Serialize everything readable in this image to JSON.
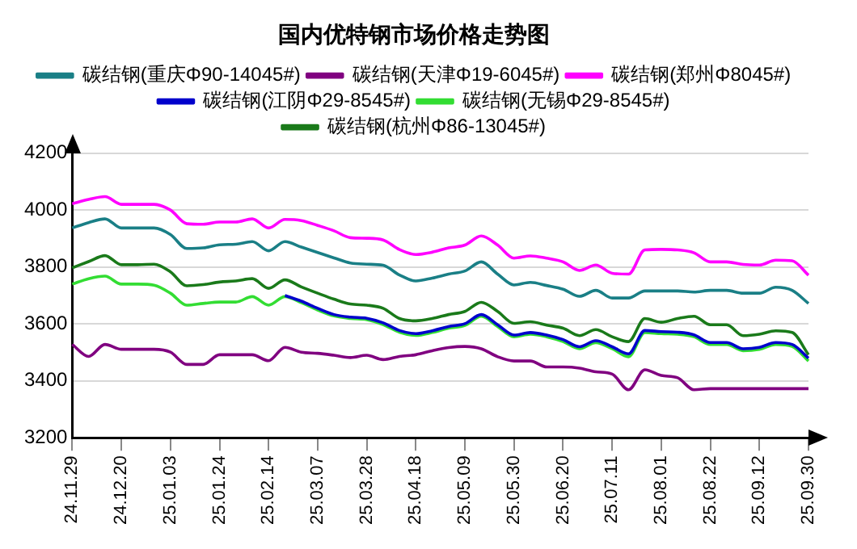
{
  "chart_data": {
    "type": "line",
    "title": "国内优特钢市场价格走势图",
    "categories": [
      "24.11.29",
      null,
      null,
      "24.12.20",
      null,
      null,
      "25.01.03",
      null,
      null,
      "25.01.24",
      null,
      null,
      "25.02.14",
      null,
      null,
      "25.03.07",
      null,
      null,
      "25.03.28",
      null,
      null,
      "25.04.18",
      null,
      null,
      "25.05.09",
      null,
      null,
      "25.05.30",
      null,
      null,
      "25.06.20",
      null,
      null,
      "25.07.11",
      null,
      null,
      "25.08.01",
      null,
      null,
      "25.08.22",
      null,
      null,
      "25.09.12",
      null,
      null,
      "25.09.30"
    ],
    "series": [
      {
        "name": "碳结钢(重庆Φ90-14045#)",
        "color": "#1a7f86",
        "values": [
          3937,
          3956,
          3969,
          3937,
          3937,
          3937,
          3914,
          3865,
          3867,
          3878,
          3880,
          3889,
          3857,
          3889,
          3870,
          3851,
          3832,
          3814,
          3810,
          3806,
          3772,
          3751,
          3761,
          3775,
          3786,
          3818,
          3775,
          3737,
          3746,
          3735,
          3722,
          3697,
          3718,
          3691,
          3691,
          3716,
          3716,
          3716,
          3712,
          3718,
          3718,
          3708,
          3708,
          3729,
          3718,
          3672
        ]
      },
      {
        "name": "碳结钢(天津Φ19-6045#)",
        "color": "#800080",
        "values": [
          3528,
          3486,
          3528,
          3511,
          3511,
          3511,
          3501,
          3458,
          3458,
          3492,
          3492,
          3492,
          3471,
          3518,
          3501,
          3497,
          3490,
          3482,
          3490,
          3475,
          3486,
          3492,
          3506,
          3517,
          3521,
          3513,
          3485,
          3470,
          3470,
          3449,
          3449,
          3445,
          3432,
          3424,
          3369,
          3439,
          3419,
          3411,
          3369,
          3373,
          3373,
          3373,
          3373,
          3373,
          3373,
          3373
        ]
      },
      {
        "name": "碳结钢(郑州Φ8045#)",
        "color": "#ff00ff",
        "values": [
          4022,
          4037,
          4047,
          4020,
          4020,
          4020,
          4000,
          3952,
          3950,
          3958,
          3958,
          3969,
          3937,
          3967,
          3963,
          3946,
          3927,
          3903,
          3901,
          3895,
          3861,
          3844,
          3852,
          3867,
          3877,
          3909,
          3877,
          3831,
          3839,
          3831,
          3818,
          3788,
          3807,
          3778,
          3775,
          3860,
          3862,
          3860,
          3850,
          3818,
          3818,
          3809,
          3807,
          3824,
          3822,
          3771
        ]
      },
      {
        "name": "碳结钢(江阴Φ29-8545#)",
        "color": "#0000cc",
        "values": [
          null,
          null,
          null,
          null,
          null,
          null,
          null,
          null,
          null,
          null,
          null,
          null,
          null,
          3700,
          3680,
          3655,
          3633,
          3624,
          3620,
          3604,
          3577,
          3566,
          3576,
          3591,
          3601,
          3633,
          3597,
          3561,
          3570,
          3561,
          3545,
          3520,
          3541,
          3520,
          3495,
          3577,
          3573,
          3571,
          3562,
          3535,
          3535,
          3513,
          3518,
          3535,
          3528,
          3480
        ]
      },
      {
        "name": "碳结钢(无锡Φ29-8545#)",
        "color": "#33dd33",
        "values": [
          3740,
          3759,
          3768,
          3740,
          3740,
          3736,
          3708,
          3666,
          3672,
          3677,
          3677,
          3696,
          3666,
          3696,
          3675,
          3649,
          3628,
          3619,
          3615,
          3598,
          3571,
          3560,
          3570,
          3585,
          3595,
          3627,
          3591,
          3555,
          3564,
          3555,
          3538,
          3513,
          3534,
          3513,
          3485,
          3570,
          3566,
          3564,
          3555,
          3528,
          3528,
          3506,
          3511,
          3528,
          3521,
          3470
        ]
      },
      {
        "name": "碳结钢(杭州Φ86-13045#)",
        "color": "#1a7a1a",
        "values": [
          3797,
          3819,
          3840,
          3808,
          3808,
          3810,
          3783,
          3734,
          3738,
          3747,
          3751,
          3759,
          3725,
          3755,
          3730,
          3708,
          3687,
          3670,
          3666,
          3655,
          3619,
          3611,
          3619,
          3633,
          3644,
          3676,
          3644,
          3602,
          3608,
          3596,
          3585,
          3559,
          3580,
          3555,
          3538,
          3619,
          3606,
          3619,
          3627,
          3597,
          3597,
          3559,
          3564,
          3576,
          3570,
          3492
        ]
      }
    ],
    "ylim": [
      3200,
      4200
    ],
    "yticks": [
      3200,
      3400,
      3600,
      3800,
      4000,
      4200
    ],
    "grid": "y",
    "legend": "top",
    "marker": "none",
    "line_style": "solid"
  }
}
